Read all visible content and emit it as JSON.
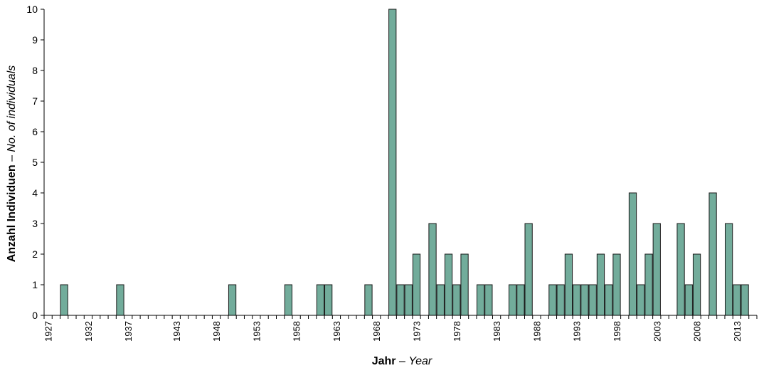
{
  "chart_data": {
    "type": "bar",
    "title": "",
    "xlabel": {
      "bold": "Jahr",
      "sep": " – ",
      "italic": "Year"
    },
    "ylabel": {
      "bold": "Anzahl Individuen",
      "sep": " – ",
      "italic": "No. of individuals"
    },
    "ylim": [
      0,
      10
    ],
    "yticks": [
      0,
      1,
      2,
      3,
      4,
      5,
      6,
      7,
      8,
      9,
      10
    ],
    "year_range": [
      1927,
      2015
    ],
    "xtick_labels": [
      "1927",
      "1932",
      "1937",
      "1943",
      "1948",
      "1953",
      "1958",
      "1963",
      "1968",
      "1973",
      "1978",
      "1983",
      "1988",
      "1993",
      "1998",
      "2003",
      "2008",
      "2013"
    ],
    "grid": false,
    "colors": {
      "bar_fill": "#72ac9b",
      "bar_stroke": "#1a1a1a"
    },
    "series": [
      {
        "x": [
          1929,
          1936,
          1950,
          1957,
          1961,
          1962,
          1967,
          1970,
          1971,
          1972,
          1973,
          1975,
          1976,
          1977,
          1978,
          1979,
          1981,
          1982,
          1985,
          1986,
          1987,
          1990,
          1991,
          1992,
          1993,
          1994,
          1995,
          1996,
          1997,
          1998,
          2000,
          2001,
          2002,
          2003,
          2006,
          2007,
          2008,
          2010,
          2012,
          2013,
          2014
        ],
        "values": [
          1,
          1,
          1,
          1,
          1,
          1,
          1,
          10,
          1,
          1,
          2,
          3,
          1,
          2,
          1,
          2,
          1,
          1,
          1,
          1,
          3,
          1,
          1,
          2,
          1,
          1,
          1,
          2,
          1,
          2,
          4,
          1,
          2,
          3,
          3,
          1,
          2,
          4,
          3,
          1,
          1
        ]
      }
    ]
  }
}
